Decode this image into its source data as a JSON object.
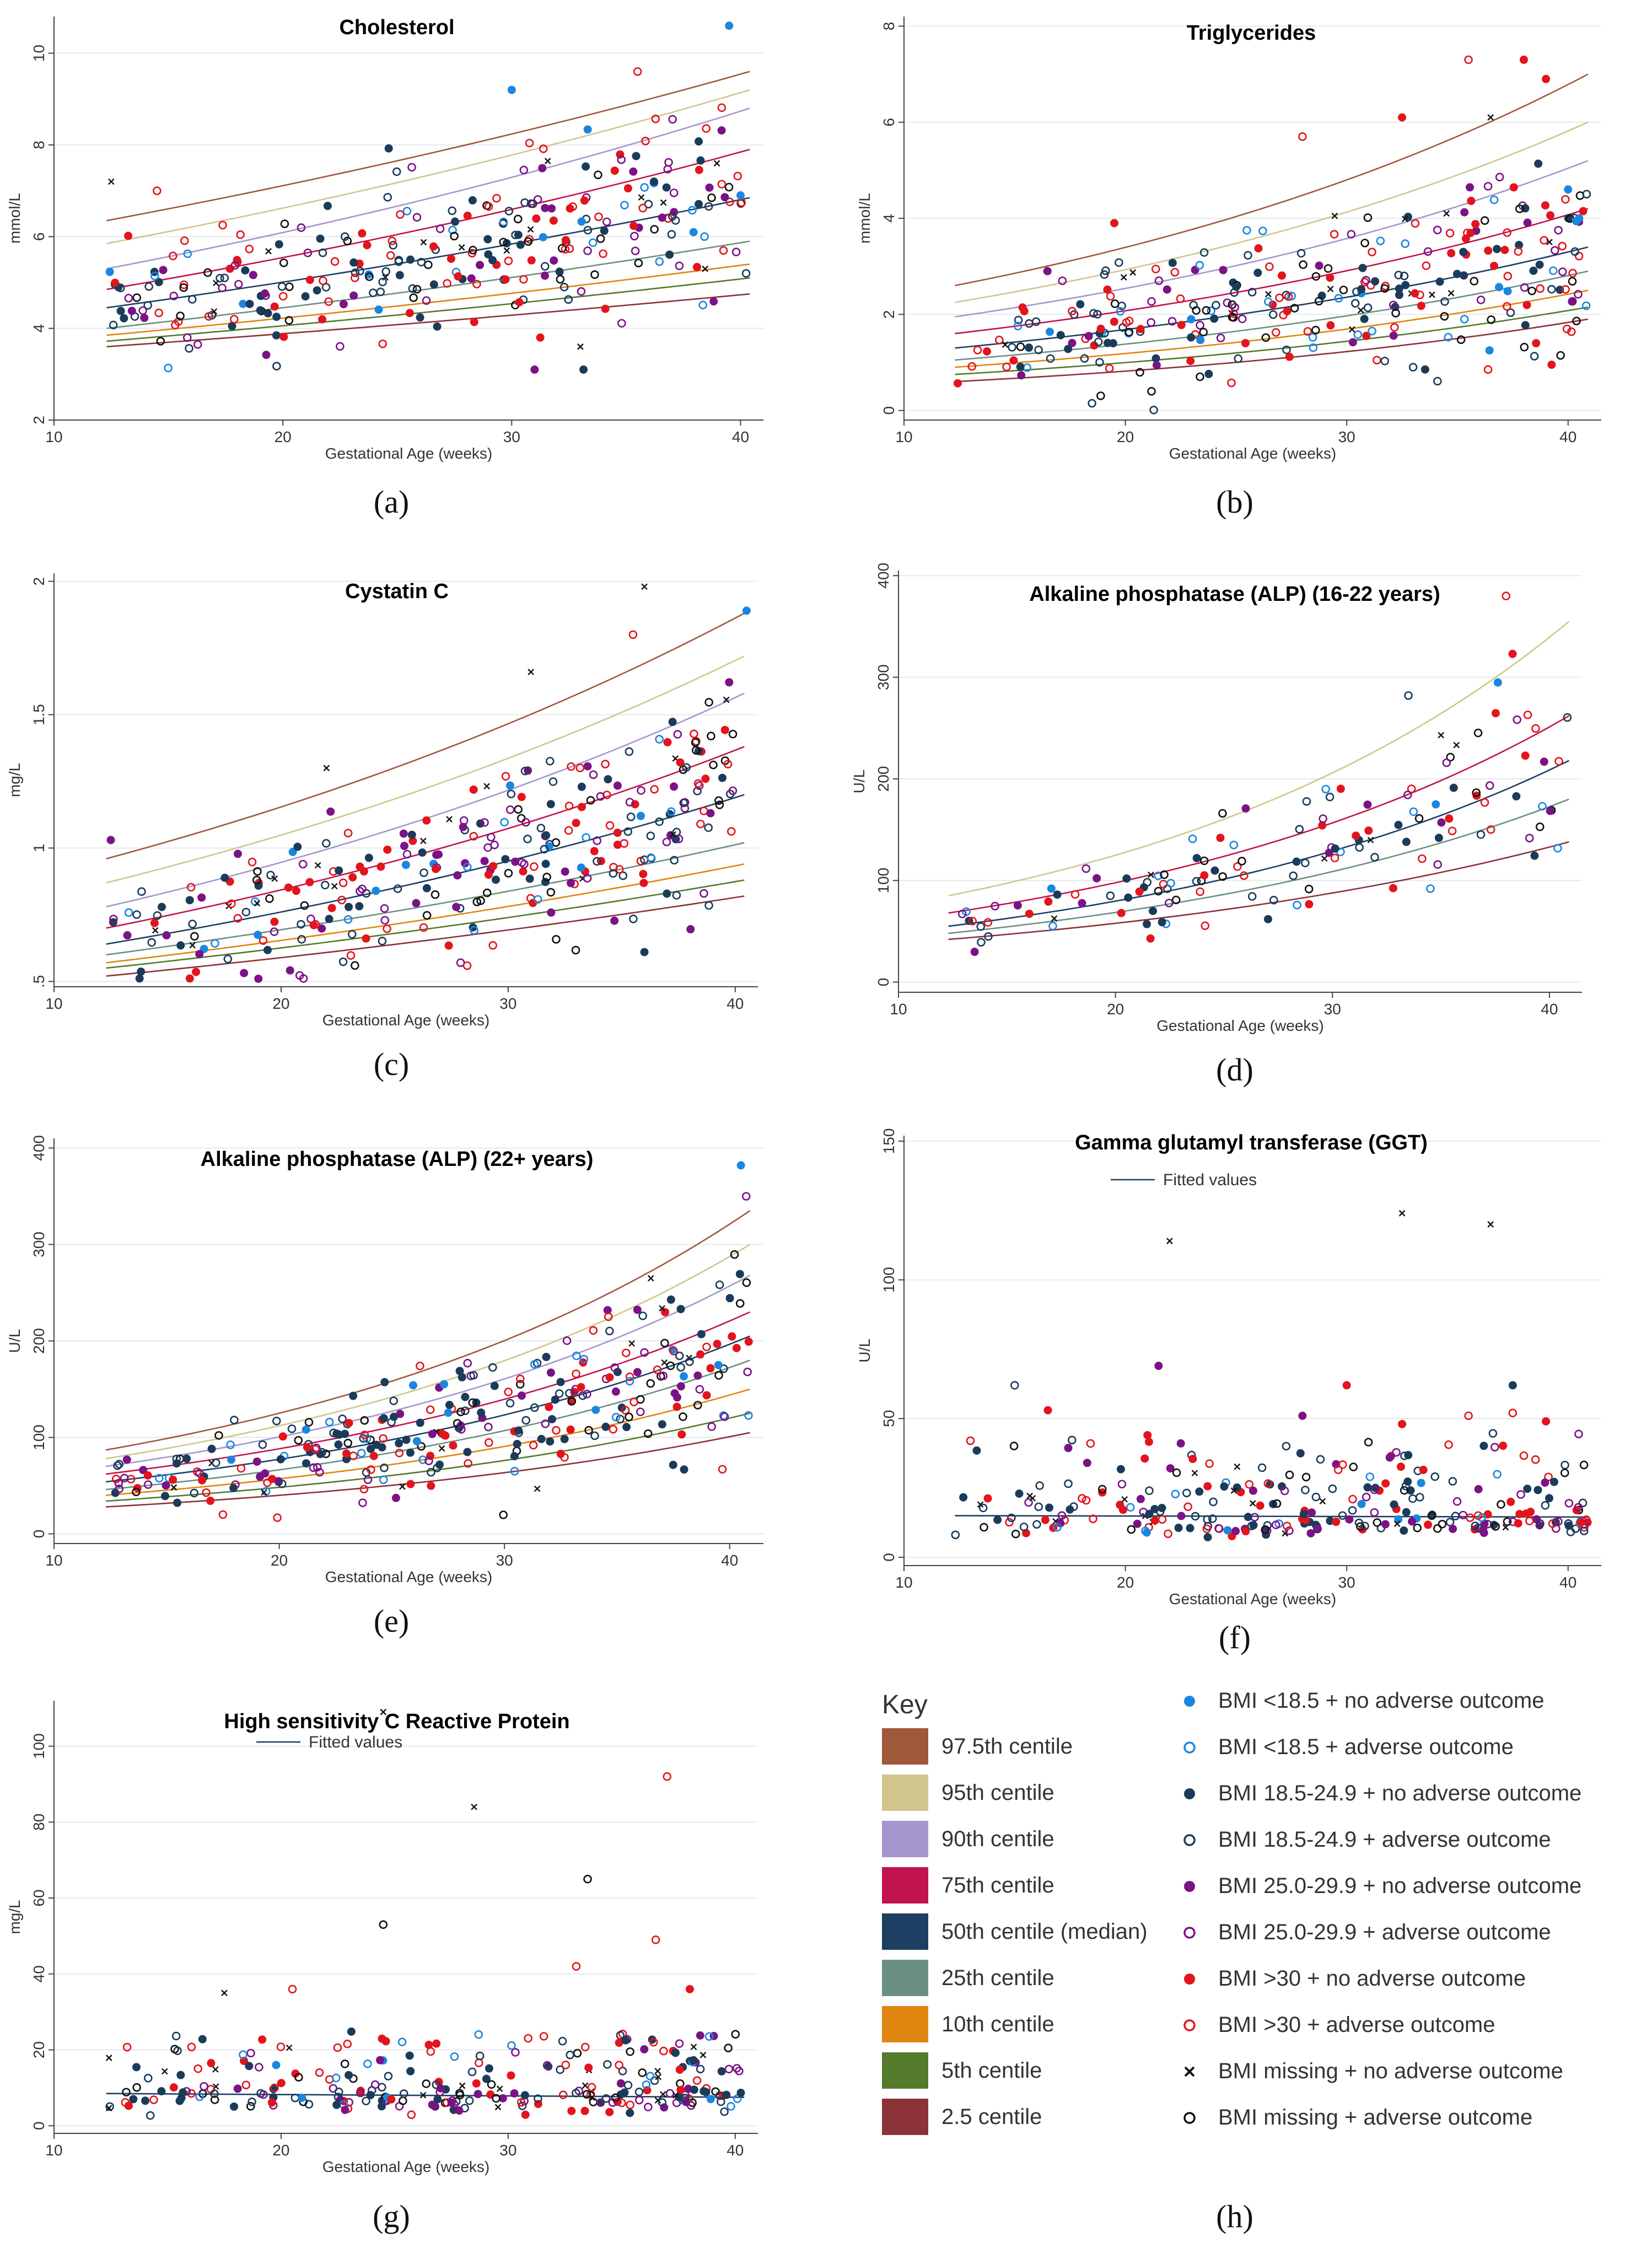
{
  "colors": {
    "c97_5": "#a0583a",
    "c95": "#d2c58b",
    "c90": "#a496cf",
    "c75": "#c2124f",
    "c50": "#1c3f63",
    "c25": "#6b9081",
    "c10": "#e0850f",
    "c5": "#547a2c",
    "c2_5": "#8b3338",
    "bmi_under": "#1b86e0",
    "bmi_normal": "#1a3c5a",
    "bmi_over": "#7b1285",
    "bmi_obese": "#e3141c",
    "bmi_missing": "#111111"
  },
  "panels": [
    {
      "id": "a",
      "label": "(a)",
      "title": "Cholesterol",
      "xlabel": "Gestational Age (weeks)",
      "ylabel": "mmol/L",
      "xlim": [
        10,
        41
      ],
      "ylim": [
        2,
        10.8
      ],
      "xticks": [
        10,
        20,
        30,
        40
      ],
      "yticks": [
        2,
        4,
        6,
        8,
        10
      ],
      "centiles": {
        "start": [
          3.6,
          3.72,
          3.85,
          4.0,
          4.45,
          4.85,
          5.3,
          5.85,
          6.35
        ],
        "end": [
          4.75,
          5.1,
          5.4,
          5.9,
          6.85,
          7.9,
          8.8,
          9.2,
          9.6
        ]
      },
      "outliers": [
        {
          "x": 12.5,
          "y": 7.2,
          "c": 8
        },
        {
          "x": 14.5,
          "y": 7.0,
          "c": 7
        },
        {
          "x": 30,
          "y": 9.2,
          "c": 0
        },
        {
          "x": 31,
          "y": 3.1,
          "c": 4
        },
        {
          "x": 35.5,
          "y": 9.6,
          "c": 7
        },
        {
          "x": 39.5,
          "y": 10.6,
          "c": 0
        },
        {
          "x": 40,
          "y": 6.9,
          "c": 0
        },
        {
          "x": 33,
          "y": 3.6,
          "c": 8
        }
      ]
    },
    {
      "id": "b",
      "label": "(b)",
      "title": "Triglycerides",
      "xlabel": "Gestational Age (weeks)",
      "ylabel": "mmol/L",
      "xlim": [
        10,
        41.5
      ],
      "ylim": [
        -0.2,
        8.2
      ],
      "xticks": [
        10,
        20,
        30,
        40
      ],
      "yticks": [
        0,
        2,
        4,
        6,
        8
      ],
      "centiles": {
        "start": [
          0.6,
          0.75,
          0.9,
          1.05,
          1.3,
          1.6,
          1.95,
          2.25,
          2.6
        ],
        "end": [
          1.9,
          2.15,
          2.5,
          2.9,
          3.4,
          4.2,
          5.2,
          6.0,
          7.0
        ]
      },
      "outliers": [
        {
          "x": 35.5,
          "y": 7.3,
          "c": 7
        },
        {
          "x": 38,
          "y": 7.3,
          "c": 6
        },
        {
          "x": 39,
          "y": 6.9,
          "c": 6
        },
        {
          "x": 36.5,
          "y": 6.1,
          "c": 8
        },
        {
          "x": 32.5,
          "y": 6.1,
          "c": 6
        },
        {
          "x": 28,
          "y": 5.7,
          "c": 7
        },
        {
          "x": 19.5,
          "y": 3.9,
          "c": 6
        },
        {
          "x": 40,
          "y": 4.6,
          "c": 0
        },
        {
          "x": 40.5,
          "y": 4.0,
          "c": 0
        },
        {
          "x": 33,
          "y": 0.9,
          "c": 3
        }
      ]
    },
    {
      "id": "c",
      "label": "(c)",
      "title": "Cystatin C",
      "xlabel": "Gestational Age (weeks)",
      "ylabel": "mg/L",
      "xlim": [
        10,
        41
      ],
      "ylim": [
        0.48,
        2.03
      ],
      "xticks": [
        10,
        20,
        30,
        40
      ],
      "yticks": [
        0.5,
        1,
        1.5,
        2
      ],
      "yticklabels": [
        ".5",
        "1",
        "1.5",
        "2"
      ],
      "centiles": {
        "start": [
          0.52,
          0.55,
          0.57,
          0.6,
          0.64,
          0.7,
          0.78,
          0.87,
          0.96
        ],
        "end": [
          0.82,
          0.88,
          0.94,
          1.02,
          1.2,
          1.38,
          1.58,
          1.72,
          1.88
        ]
      },
      "outliers": [
        {
          "x": 36,
          "y": 1.98,
          "c": 8
        },
        {
          "x": 40.5,
          "y": 1.89,
          "c": 0
        },
        {
          "x": 35.5,
          "y": 1.8,
          "c": 7
        },
        {
          "x": 31,
          "y": 1.66,
          "c": 8
        },
        {
          "x": 22,
          "y": 1.3,
          "c": 8
        },
        {
          "x": 12.5,
          "y": 1.03,
          "c": 4
        },
        {
          "x": 19,
          "y": 0.51,
          "c": 4
        },
        {
          "x": 36,
          "y": 0.61,
          "c": 2
        }
      ]
    },
    {
      "id": "d",
      "label": "(d)",
      "title": "Alkaline phosphatase (ALP) (16-22 years)",
      "xlabel": "Gestational Age (weeks)",
      "ylabel": "U/L",
      "xlim": [
        10,
        41.5
      ],
      "ylim": [
        -10,
        405
      ],
      "xticks": [
        10,
        20,
        30,
        40
      ],
      "yticks": [
        0,
        100,
        200,
        300,
        400
      ],
      "centiles": {
        "start": [
          42,
          48,
          55,
          68,
          85
        ],
        "end": [
          138,
          180,
          218,
          262,
          355
        ]
      },
      "centile_colors": [
        "c2_5",
        "c25",
        "c50",
        "c75",
        "c95"
      ],
      "outliers": [
        {
          "x": 38,
          "y": 380,
          "c": 7
        },
        {
          "x": 38.3,
          "y": 323,
          "c": 6
        },
        {
          "x": 39,
          "y": 263,
          "c": 7
        },
        {
          "x": 33.5,
          "y": 282,
          "c": 3
        },
        {
          "x": 35,
          "y": 243,
          "c": 8
        }
      ]
    },
    {
      "id": "e",
      "label": "(e)",
      "title": "Alkaline phosphatase (ALP) (22+ years)",
      "xlabel": "Gestational Age (weeks)",
      "ylabel": "U/L",
      "xlim": [
        10,
        41.5
      ],
      "ylim": [
        -10,
        410
      ],
      "xticks": [
        10,
        20,
        30,
        40
      ],
      "yticks": [
        0,
        100,
        200,
        300,
        400
      ],
      "centiles": {
        "start": [
          28,
          34,
          40,
          46,
          54,
          62,
          70,
          78,
          87
        ],
        "end": [
          105,
          125,
          150,
          180,
          205,
          230,
          268,
          300,
          335
        ]
      },
      "outliers": [
        {
          "x": 40.5,
          "y": 382,
          "c": 0
        },
        {
          "x": 39.5,
          "y": 175,
          "c": 0
        },
        {
          "x": 36.5,
          "y": 265,
          "c": 8
        },
        {
          "x": 17.5,
          "y": 20,
          "c": 7
        }
      ]
    },
    {
      "id": "f",
      "label": "(f)",
      "title": "Gamma glutamyl transferase (GGT)",
      "legend": "Fitted values",
      "xlabel": "Gestational Age (weeks)",
      "ylabel": "U/L",
      "xlim": [
        10,
        41.5
      ],
      "ylim": [
        -3,
        152
      ],
      "xticks": [
        10,
        20,
        30,
        40
      ],
      "yticks": [
        0,
        50,
        100,
        150
      ],
      "fit": [
        15,
        14.5
      ],
      "outliers": [
        {
          "x": 32.5,
          "y": 124,
          "c": 8
        },
        {
          "x": 36.5,
          "y": 120,
          "c": 8
        },
        {
          "x": 22,
          "y": 114,
          "c": 8
        },
        {
          "x": 21.5,
          "y": 69,
          "c": 4
        },
        {
          "x": 15,
          "y": 62,
          "c": 3
        },
        {
          "x": 30,
          "y": 62,
          "c": 6
        },
        {
          "x": 37.5,
          "y": 62,
          "c": 2
        },
        {
          "x": 16.5,
          "y": 53,
          "c": 6
        },
        {
          "x": 28,
          "y": 51,
          "c": 4
        },
        {
          "x": 35.5,
          "y": 51,
          "c": 7
        },
        {
          "x": 37.5,
          "y": 52,
          "c": 7
        },
        {
          "x": 39,
          "y": 49,
          "c": 6
        },
        {
          "x": 32.5,
          "y": 48,
          "c": 6
        },
        {
          "x": 13,
          "y": 42,
          "c": 7
        },
        {
          "x": 21,
          "y": 44,
          "c": 6
        }
      ]
    },
    {
      "id": "g",
      "label": "(g)",
      "title": "High sensitivity C Reactive Protein",
      "legend": "Fitted values",
      "xlabel": "Gestational Age (weeks)",
      "ylabel": "mg/L",
      "xlim": [
        10,
        41
      ],
      "ylim": [
        -2,
        112
      ],
      "xticks": [
        10,
        20,
        30,
        40
      ],
      "yticks": [
        0,
        20,
        40,
        60,
        80,
        100
      ],
      "fit": [
        8.5,
        7.5
      ],
      "outliers": [
        {
          "x": 24.5,
          "y": 109,
          "c": 8
        },
        {
          "x": 37,
          "y": 92,
          "c": 7
        },
        {
          "x": 28.5,
          "y": 84,
          "c": 8
        },
        {
          "x": 33.5,
          "y": 65,
          "c": 9
        },
        {
          "x": 24.5,
          "y": 53,
          "c": 9
        },
        {
          "x": 36.5,
          "y": 49,
          "c": 7
        },
        {
          "x": 33,
          "y": 42,
          "c": 7
        },
        {
          "x": 38,
          "y": 36,
          "c": 6
        },
        {
          "x": 20.5,
          "y": 36,
          "c": 7
        },
        {
          "x": 17.5,
          "y": 35,
          "c": 8
        }
      ]
    }
  ],
  "key": {
    "title": "Key",
    "centiles": [
      {
        "label": "97.5th centile",
        "color": "c97_5"
      },
      {
        "label": "95th centile",
        "color": "c95"
      },
      {
        "label": "90th centile",
        "color": "c90"
      },
      {
        "label": "75th centile",
        "color": "c75"
      },
      {
        "label": "50th centile (median)",
        "color": "c50"
      },
      {
        "label": "25th centile",
        "color": "c25"
      },
      {
        "label": "10th centile",
        "color": "c10"
      },
      {
        "label": "5th centile",
        "color": "c5"
      },
      {
        "label": "2.5 centile",
        "color": "c2_5"
      }
    ],
    "markers": [
      {
        "label": "BMI <18.5 + no adverse outcome",
        "shape": "filled",
        "color": "bmi_under"
      },
      {
        "label": "BMI <18.5 + adverse outcome",
        "shape": "hollow",
        "color": "bmi_under"
      },
      {
        "label": "BMI 18.5-24.9 + no adverse outcome",
        "shape": "filled",
        "color": "bmi_normal"
      },
      {
        "label": "BMI 18.5-24.9 + adverse outcome",
        "shape": "hollow",
        "color": "bmi_normal"
      },
      {
        "label": "BMI 25.0-29.9 + no adverse outcome",
        "shape": "filled",
        "color": "bmi_over"
      },
      {
        "label": "BMI 25.0-29.9 + adverse outcome",
        "shape": "hollow",
        "color": "bmi_over"
      },
      {
        "label": "BMI >30 + no adverse outcome",
        "shape": "filled",
        "color": "bmi_obese"
      },
      {
        "label": "BMI >30 + adverse outcome",
        "shape": "hollow",
        "color": "bmi_obese"
      },
      {
        "label": "BMI missing + no adverse outcome",
        "shape": "cross",
        "color": "bmi_missing"
      },
      {
        "label": "BMI missing + adverse outcome",
        "shape": "hollow",
        "color": "bmi_missing"
      }
    ],
    "label": "(h)"
  }
}
